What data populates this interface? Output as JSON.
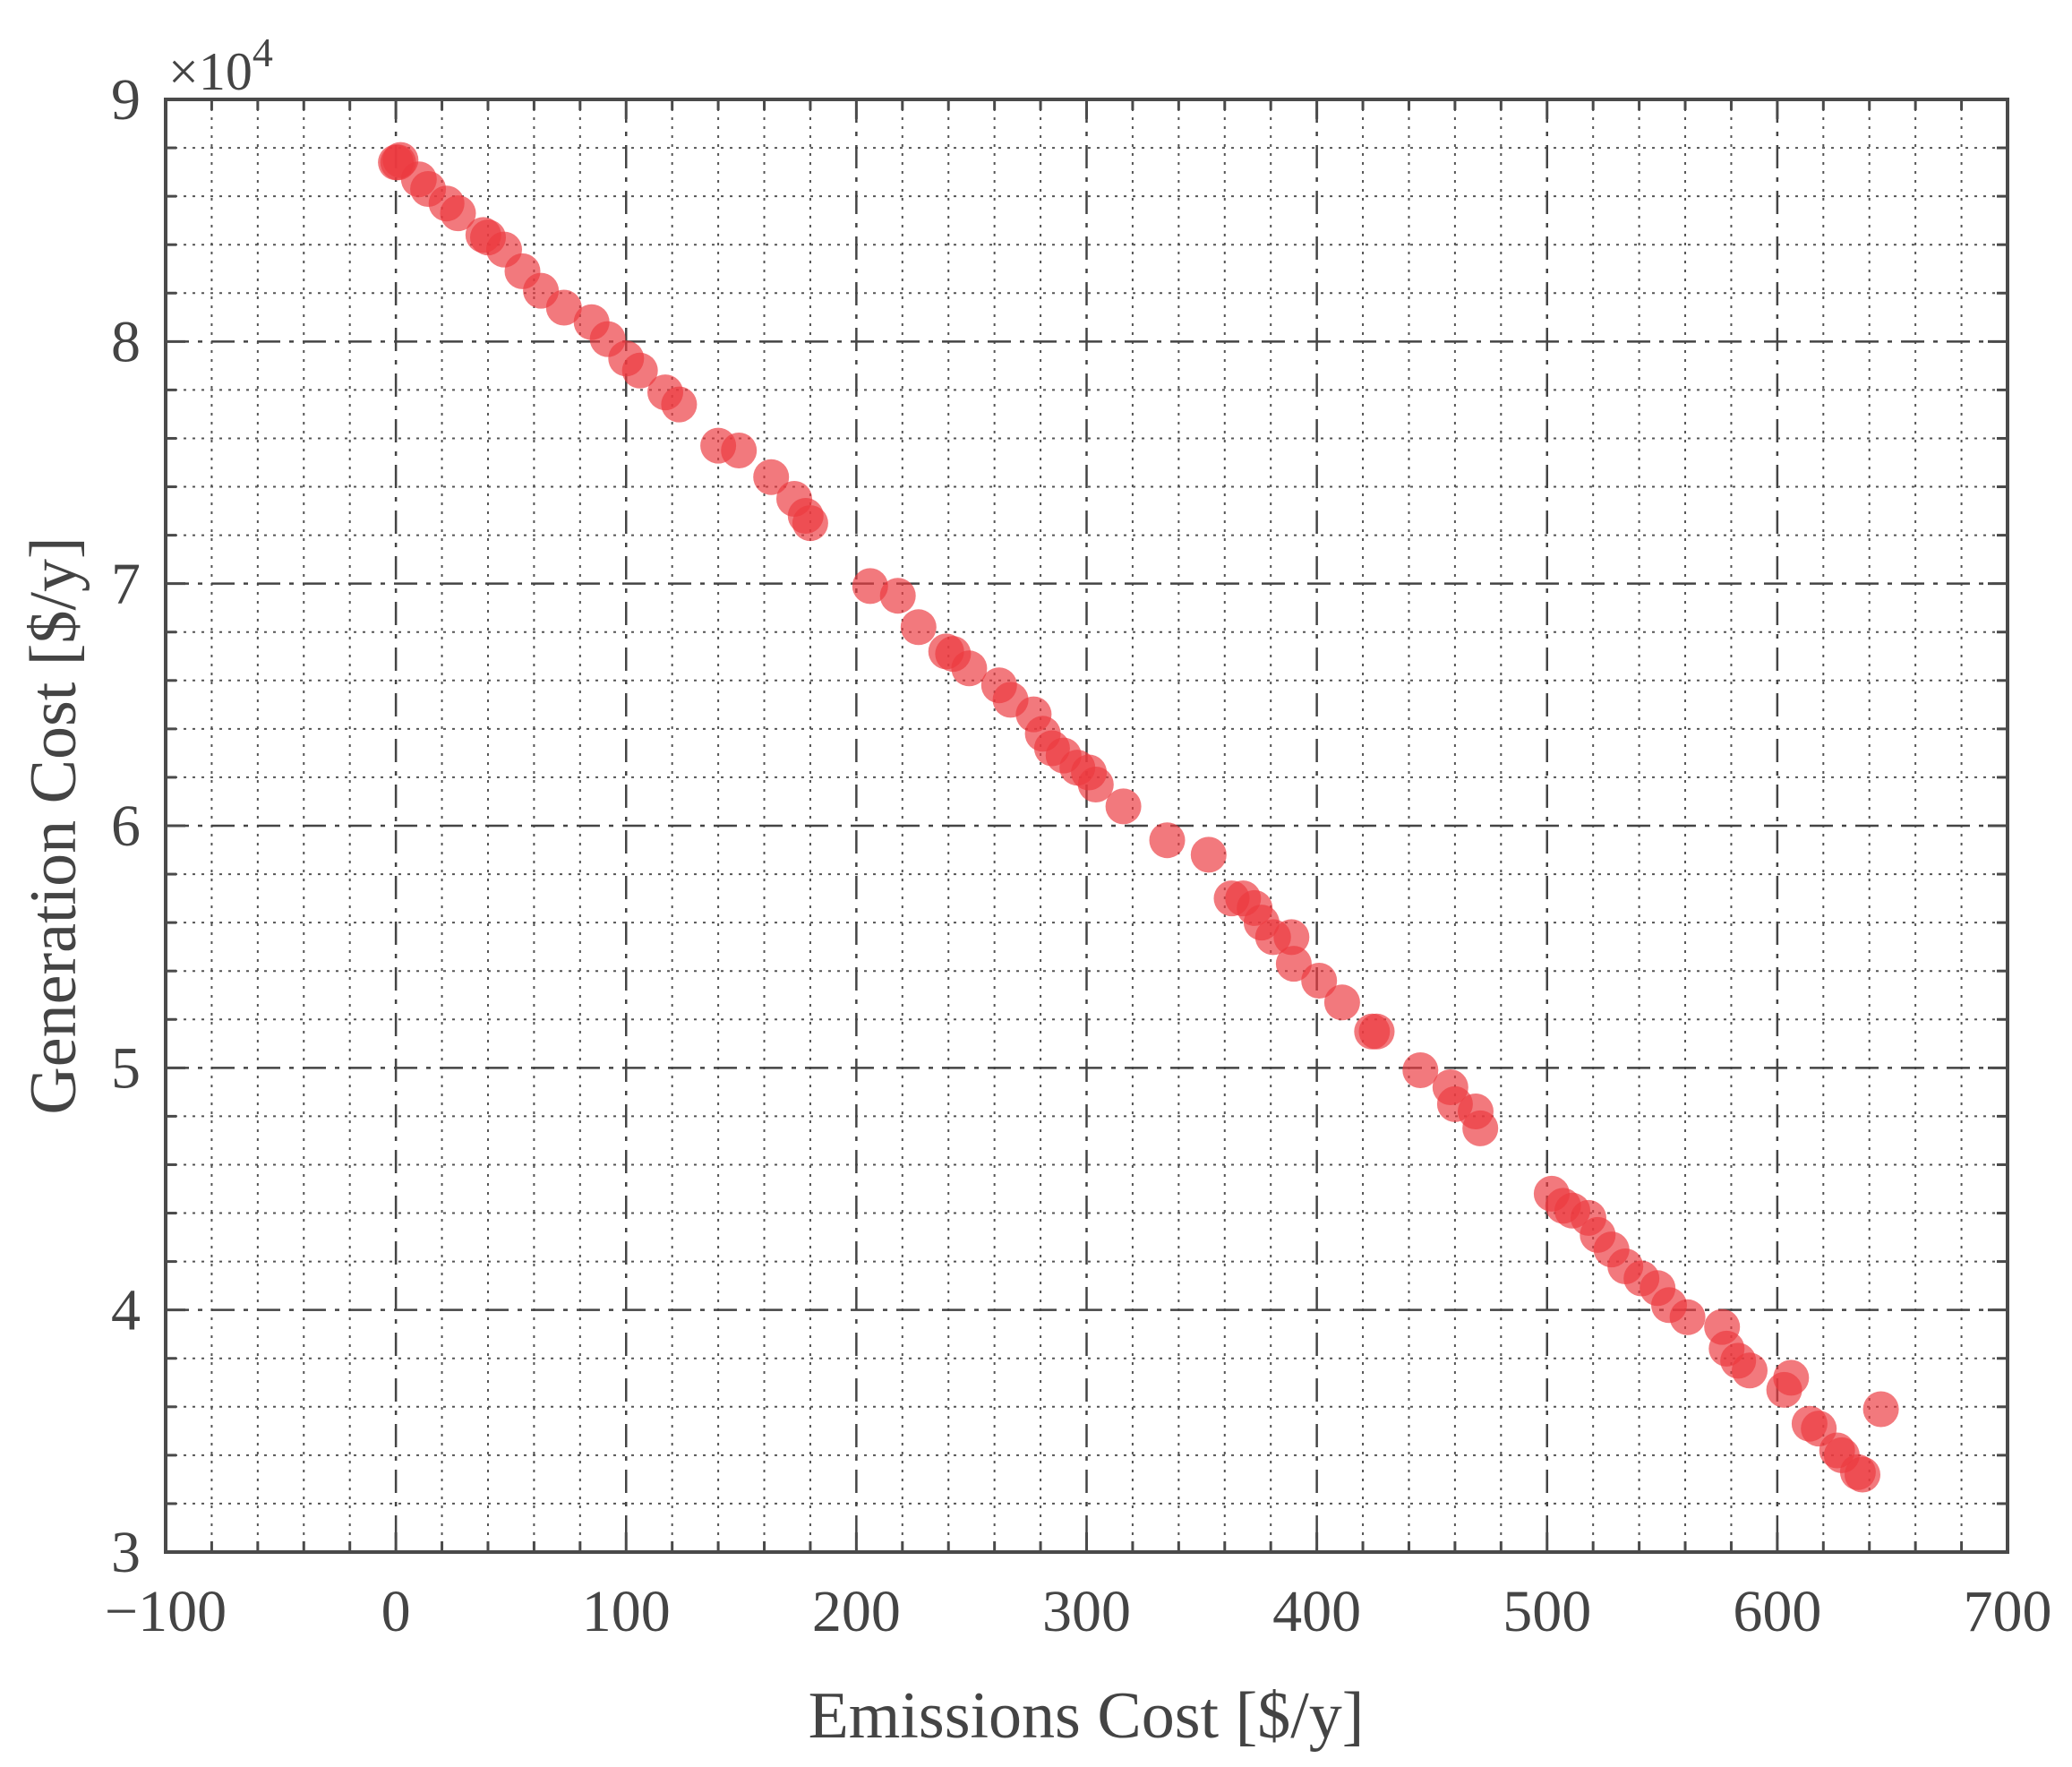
{
  "chart_data": {
    "type": "scatter",
    "xlabel": "Emissions Cost [$/y]",
    "ylabel": "Generation Cost [$/y]",
    "y_exponent_base": "×10",
    "y_exponent_power": "4",
    "xlim": [
      -100,
      700
    ],
    "ylim": [
      3,
      9
    ],
    "x_major_ticks": [
      -100,
      0,
      100,
      200,
      300,
      400,
      500,
      600,
      700
    ],
    "x_tick_labels": [
      "−100",
      "0",
      "100",
      "200",
      "300",
      "400",
      "500",
      "600",
      "700"
    ],
    "y_major_ticks": [
      3,
      4,
      5,
      6,
      7,
      8,
      9
    ],
    "y_tick_labels": [
      "3",
      "4",
      "5",
      "6",
      "7",
      "8",
      "9"
    ],
    "x_minor_step": 20,
    "y_minor_step": 0.2,
    "grid": "on",
    "marker_color": "#ec3a3f",
    "marker_opacity": 0.68,
    "series": [
      {
        "points": [
          [
            0,
            8.74
          ],
          [
            1,
            8.74
          ],
          [
            2,
            8.75
          ],
          [
            10,
            8.67
          ],
          [
            14,
            8.63
          ],
          [
            22,
            8.57
          ],
          [
            27,
            8.53
          ],
          [
            38,
            8.44
          ],
          [
            40,
            8.43
          ],
          [
            47,
            8.38
          ],
          [
            55,
            8.29
          ],
          [
            63,
            8.21
          ],
          [
            73,
            8.14
          ],
          [
            85,
            8.08
          ],
          [
            92,
            8.01
          ],
          [
            100,
            7.93
          ],
          [
            106,
            7.88
          ],
          [
            117,
            7.79
          ],
          [
            123,
            7.74
          ],
          [
            140,
            7.57
          ],
          [
            149,
            7.55
          ],
          [
            163,
            7.44
          ],
          [
            173,
            7.35
          ],
          [
            178,
            7.28
          ],
          [
            180,
            7.25
          ],
          [
            206,
            6.99
          ],
          [
            218,
            6.95
          ],
          [
            227,
            6.82
          ],
          [
            239,
            6.72
          ],
          [
            242,
            6.71
          ],
          [
            249,
            6.65
          ],
          [
            262,
            6.58
          ],
          [
            267,
            6.52
          ],
          [
            277,
            6.46
          ],
          [
            281,
            6.38
          ],
          [
            285,
            6.32
          ],
          [
            290,
            6.29
          ],
          [
            296,
            6.24
          ],
          [
            301,
            6.22
          ],
          [
            304,
            6.17
          ],
          [
            316,
            6.08
          ],
          [
            335,
            5.94
          ],
          [
            353,
            5.88
          ],
          [
            363,
            5.7
          ],
          [
            368,
            5.7
          ],
          [
            373,
            5.66
          ],
          [
            376,
            5.6
          ],
          [
            381,
            5.54
          ],
          [
            389,
            5.54
          ],
          [
            390,
            5.43
          ],
          [
            401,
            5.36
          ],
          [
            411,
            5.27
          ],
          [
            424,
            5.15
          ],
          [
            426,
            5.15
          ],
          [
            445,
            4.99
          ],
          [
            458,
            4.92
          ],
          [
            460,
            4.85
          ],
          [
            469,
            4.82
          ],
          [
            471,
            4.75
          ],
          [
            502,
            4.48
          ],
          [
            507,
            4.43
          ],
          [
            511,
            4.41
          ],
          [
            518,
            4.38
          ],
          [
            522,
            4.31
          ],
          [
            528,
            4.25
          ],
          [
            534,
            4.18
          ],
          [
            541,
            4.13
          ],
          [
            548,
            4.09
          ],
          [
            553,
            4.02
          ],
          [
            561,
            3.97
          ],
          [
            576,
            3.93
          ],
          [
            578,
            3.84
          ],
          [
            583,
            3.79
          ],
          [
            588,
            3.75
          ],
          [
            603,
            3.67
          ],
          [
            606,
            3.72
          ],
          [
            614,
            3.53
          ],
          [
            618,
            3.51
          ],
          [
            626,
            3.42
          ],
          [
            628,
            3.4
          ],
          [
            635,
            3.33
          ],
          [
            637,
            3.32
          ],
          [
            645,
            3.59
          ]
        ]
      }
    ]
  }
}
